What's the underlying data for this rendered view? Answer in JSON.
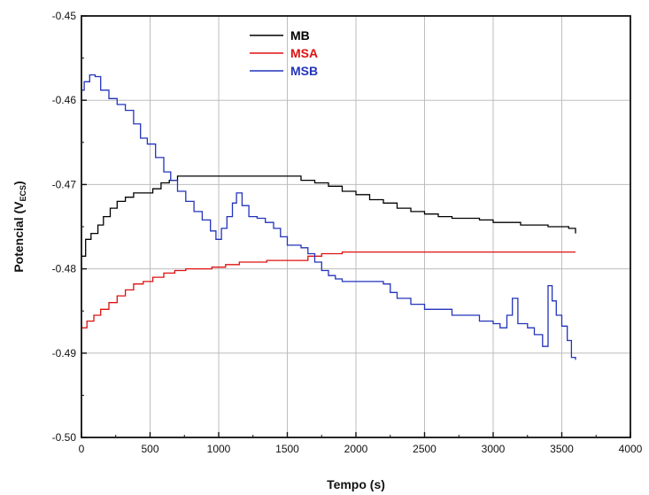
{
  "chart_data": {
    "type": "line",
    "xlabel": "Tempo (s)",
    "ylabel": "Potencial (V",
    "ylabel_sub": "ECS",
    "ylabel_close": ")",
    "xlim": [
      0,
      4000
    ],
    "ylim": [
      -0.5,
      -0.45
    ],
    "x_ticks": [
      0,
      500,
      1000,
      1500,
      2000,
      2500,
      3000,
      3500,
      4000
    ],
    "x_tick_labels": [
      "0",
      "500",
      "1000",
      "1500",
      "2000",
      "2500",
      "3000",
      "3500",
      "4000"
    ],
    "y_ticks": [
      -0.5,
      -0.49,
      -0.48,
      -0.47,
      -0.46,
      -0.45
    ],
    "y_tick_labels": [
      "-0.50",
      "-0.49",
      "-0.48",
      "-0.47",
      "-0.46",
      "-0.45"
    ],
    "grid": true,
    "legend_position": "top-center",
    "series": [
      {
        "name": "MB",
        "color": "#000000",
        "points": [
          [
            0,
            -0.4785
          ],
          [
            30,
            -0.4765
          ],
          [
            70,
            -0.4758
          ],
          [
            120,
            -0.4748
          ],
          [
            160,
            -0.4738
          ],
          [
            210,
            -0.4728
          ],
          [
            260,
            -0.472
          ],
          [
            320,
            -0.4715
          ],
          [
            380,
            -0.471
          ],
          [
            460,
            -0.471
          ],
          [
            520,
            -0.4705
          ],
          [
            580,
            -0.4698
          ],
          [
            640,
            -0.4695
          ],
          [
            700,
            -0.469
          ],
          [
            800,
            -0.469
          ],
          [
            900,
            -0.469
          ],
          [
            1000,
            -0.469
          ],
          [
            1100,
            -0.469
          ],
          [
            1200,
            -0.469
          ],
          [
            1300,
            -0.469
          ],
          [
            1400,
            -0.469
          ],
          [
            1500,
            -0.469
          ],
          [
            1600,
            -0.4695
          ],
          [
            1700,
            -0.4698
          ],
          [
            1800,
            -0.4702
          ],
          [
            1900,
            -0.4708
          ],
          [
            2000,
            -0.4712
          ],
          [
            2100,
            -0.4718
          ],
          [
            2200,
            -0.4722
          ],
          [
            2300,
            -0.4728
          ],
          [
            2400,
            -0.4732
          ],
          [
            2500,
            -0.4735
          ],
          [
            2600,
            -0.4738
          ],
          [
            2700,
            -0.474
          ],
          [
            2800,
            -0.474
          ],
          [
            2900,
            -0.4742
          ],
          [
            3000,
            -0.4745
          ],
          [
            3100,
            -0.4745
          ],
          [
            3200,
            -0.4748
          ],
          [
            3300,
            -0.4748
          ],
          [
            3400,
            -0.475
          ],
          [
            3500,
            -0.475
          ],
          [
            3550,
            -0.4752
          ],
          [
            3600,
            -0.4758
          ]
        ]
      },
      {
        "name": "MSA",
        "color": "#dd1111",
        "points": [
          [
            0,
            -0.487
          ],
          [
            40,
            -0.4862
          ],
          [
            90,
            -0.4855
          ],
          [
            140,
            -0.4848
          ],
          [
            200,
            -0.484
          ],
          [
            260,
            -0.4832
          ],
          [
            320,
            -0.4825
          ],
          [
            380,
            -0.4818
          ],
          [
            450,
            -0.4815
          ],
          [
            520,
            -0.481
          ],
          [
            600,
            -0.4805
          ],
          [
            680,
            -0.4802
          ],
          [
            760,
            -0.48
          ],
          [
            850,
            -0.48
          ],
          [
            950,
            -0.4798
          ],
          [
            1050,
            -0.4795
          ],
          [
            1150,
            -0.4792
          ],
          [
            1250,
            -0.4792
          ],
          [
            1350,
            -0.479
          ],
          [
            1450,
            -0.479
          ],
          [
            1550,
            -0.479
          ],
          [
            1650,
            -0.4785
          ],
          [
            1750,
            -0.4782
          ],
          [
            1900,
            -0.478
          ],
          [
            2100,
            -0.478
          ],
          [
            2300,
            -0.478
          ],
          [
            2500,
            -0.478
          ],
          [
            2700,
            -0.478
          ],
          [
            2900,
            -0.478
          ],
          [
            3100,
            -0.478
          ],
          [
            3300,
            -0.478
          ],
          [
            3450,
            -0.478
          ],
          [
            3600,
            -0.478
          ]
        ]
      },
      {
        "name": "MSB",
        "color": "#2233bb",
        "points": [
          [
            0,
            -0.4588
          ],
          [
            20,
            -0.4578
          ],
          [
            60,
            -0.457
          ],
          [
            100,
            -0.4572
          ],
          [
            140,
            -0.4588
          ],
          [
            200,
            -0.4598
          ],
          [
            260,
            -0.4605
          ],
          [
            320,
            -0.4612
          ],
          [
            380,
            -0.4628
          ],
          [
            430,
            -0.4645
          ],
          [
            480,
            -0.4652
          ],
          [
            540,
            -0.4668
          ],
          [
            600,
            -0.4685
          ],
          [
            650,
            -0.4695
          ],
          [
            700,
            -0.4708
          ],
          [
            760,
            -0.472
          ],
          [
            820,
            -0.4732
          ],
          [
            880,
            -0.4742
          ],
          [
            940,
            -0.4755
          ],
          [
            980,
            -0.4765
          ],
          [
            1020,
            -0.4752
          ],
          [
            1060,
            -0.4738
          ],
          [
            1100,
            -0.4722
          ],
          [
            1130,
            -0.471
          ],
          [
            1170,
            -0.4725
          ],
          [
            1220,
            -0.4738
          ],
          [
            1280,
            -0.474
          ],
          [
            1340,
            -0.4745
          ],
          [
            1400,
            -0.4752
          ],
          [
            1450,
            -0.4762
          ],
          [
            1500,
            -0.4772
          ],
          [
            1550,
            -0.4772
          ],
          [
            1600,
            -0.4775
          ],
          [
            1650,
            -0.4782
          ],
          [
            1700,
            -0.4792
          ],
          [
            1750,
            -0.4802
          ],
          [
            1800,
            -0.4808
          ],
          [
            1850,
            -0.4812
          ],
          [
            1900,
            -0.4815
          ],
          [
            2000,
            -0.4815
          ],
          [
            2100,
            -0.4815
          ],
          [
            2200,
            -0.4818
          ],
          [
            2250,
            -0.4828
          ],
          [
            2300,
            -0.4835
          ],
          [
            2400,
            -0.4842
          ],
          [
            2500,
            -0.4848
          ],
          [
            2600,
            -0.4848
          ],
          [
            2700,
            -0.4855
          ],
          [
            2800,
            -0.4855
          ],
          [
            2900,
            -0.4862
          ],
          [
            3000,
            -0.4865
          ],
          [
            3050,
            -0.487
          ],
          [
            3100,
            -0.4855
          ],
          [
            3140,
            -0.4835
          ],
          [
            3180,
            -0.4865
          ],
          [
            3250,
            -0.487
          ],
          [
            3300,
            -0.4878
          ],
          [
            3360,
            -0.4892
          ],
          [
            3400,
            -0.482
          ],
          [
            3430,
            -0.4838
          ],
          [
            3460,
            -0.4855
          ],
          [
            3500,
            -0.4868
          ],
          [
            3540,
            -0.4885
          ],
          [
            3570,
            -0.4905
          ],
          [
            3600,
            -0.4908
          ]
        ]
      }
    ]
  }
}
